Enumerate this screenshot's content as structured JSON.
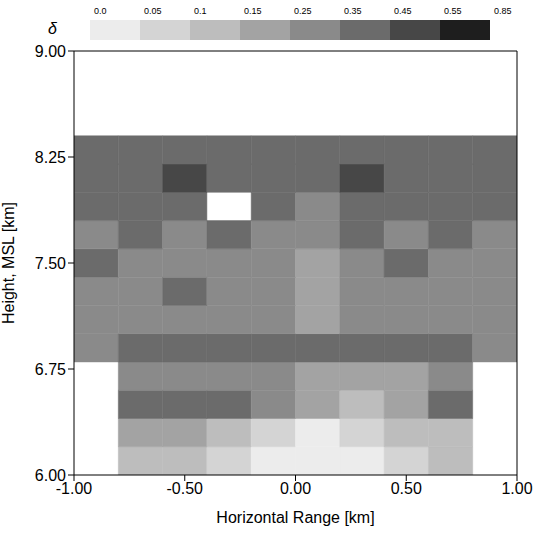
{
  "chart_data": {
    "type": "heatmap",
    "x_label": "Horizontal Range [km]",
    "y_label": "Height, MSL [km]",
    "xlim": [
      -1,
      1
    ],
    "ylim": [
      6,
      9
    ],
    "xticks": [
      {
        "value": -1,
        "label": "-1.00"
      },
      {
        "value": -0.5,
        "label": "-0.50"
      },
      {
        "value": 0,
        "label": "0.00"
      },
      {
        "value": 0.5,
        "label": "0.50"
      },
      {
        "value": 1,
        "label": "1.00"
      }
    ],
    "yticks": [
      {
        "value": 6,
        "label": "6.00"
      },
      {
        "value": 6.75,
        "label": "6.75"
      },
      {
        "value": 7.5,
        "label": "7.50"
      },
      {
        "value": 8.25,
        "label": "8.25"
      },
      {
        "value": 9,
        "label": "9.00"
      }
    ],
    "heatmap": {
      "x_edges": [
        -1,
        -0.8,
        -0.6,
        -0.4,
        -0.2,
        0,
        0.2,
        0.4,
        0.6,
        0.8,
        1
      ],
      "y_edges": [
        6,
        6.2,
        6.4,
        6.6,
        6.8,
        7,
        7.2,
        7.4,
        7.6,
        7.8,
        8,
        8.2,
        8.4
      ],
      "values": [
        [
          null,
          0.12,
          0.1,
          0.07,
          0.03,
          0.03,
          0.03,
          0.07,
          0.1,
          null
        ],
        [
          null,
          0.2,
          0.2,
          0.12,
          0.07,
          0.03,
          0.07,
          0.12,
          0.12,
          null
        ],
        [
          null,
          0.4,
          0.4,
          0.4,
          0.3,
          0.2,
          0.12,
          0.2,
          0.4,
          null
        ],
        [
          null,
          0.3,
          0.3,
          0.3,
          0.3,
          0.2,
          0.2,
          0.2,
          0.3,
          null
        ],
        [
          0.3,
          0.4,
          0.4,
          0.4,
          0.4,
          0.4,
          0.4,
          0.4,
          0.4,
          0.3
        ],
        [
          0.3,
          0.3,
          0.3,
          0.3,
          0.3,
          0.2,
          0.3,
          0.3,
          0.3,
          0.3
        ],
        [
          0.3,
          0.3,
          0.4,
          0.3,
          0.3,
          0.2,
          0.3,
          0.3,
          0.3,
          0.3
        ],
        [
          0.4,
          0.3,
          0.3,
          0.3,
          0.3,
          0.2,
          0.3,
          0.4,
          0.3,
          0.3
        ],
        [
          0.3,
          0.4,
          0.3,
          0.4,
          0.3,
          0.3,
          0.4,
          0.3,
          0.4,
          0.3
        ],
        [
          0.4,
          0.4,
          0.4,
          null,
          0.4,
          0.3,
          0.4,
          0.4,
          0.4,
          0.4
        ],
        [
          0.4,
          0.4,
          0.5,
          0.4,
          0.4,
          0.4,
          0.5,
          0.4,
          0.4,
          0.4
        ],
        [
          0.4,
          0.4,
          0.4,
          0.4,
          0.4,
          0.4,
          0.4,
          0.4,
          0.4,
          0.4
        ]
      ]
    },
    "colorbar": {
      "label": "δ",
      "ticks": [
        {
          "value": 0,
          "label": "0.0"
        },
        0.05,
        0.1,
        0.15,
        0.25,
        0.35,
        0.45,
        0.55,
        0.85
      ],
      "colors": [
        "#ececec",
        "#d4d4d4",
        "#bdbdbd",
        "#a3a3a3",
        "#8a8a8a",
        "#6b6b6b",
        "#474747",
        "#1e1e1e"
      ]
    }
  }
}
